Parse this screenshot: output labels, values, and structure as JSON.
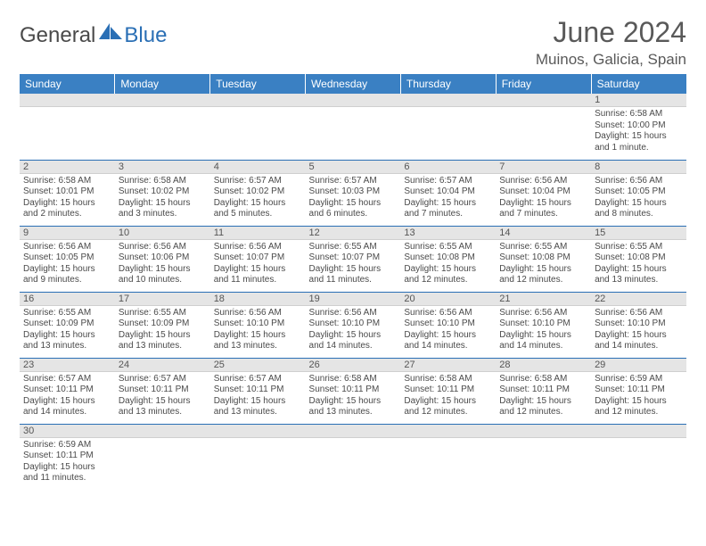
{
  "brand": {
    "general": "General",
    "blue": "Blue"
  },
  "title": "June 2024",
  "location": "Muinos, Galicia, Spain",
  "colors": {
    "header_bg": "#3a80c3",
    "daynum_bg": "#e5e5e5",
    "row_border": "#2a6fb5",
    "text": "#4a4a4a"
  },
  "weekdays": [
    "Sunday",
    "Monday",
    "Tuesday",
    "Wednesday",
    "Thursday",
    "Friday",
    "Saturday"
  ],
  "weeks": [
    [
      {
        "n": "",
        "sr": "",
        "ss": "",
        "dl": ""
      },
      {
        "n": "",
        "sr": "",
        "ss": "",
        "dl": ""
      },
      {
        "n": "",
        "sr": "",
        "ss": "",
        "dl": ""
      },
      {
        "n": "",
        "sr": "",
        "ss": "",
        "dl": ""
      },
      {
        "n": "",
        "sr": "",
        "ss": "",
        "dl": ""
      },
      {
        "n": "",
        "sr": "",
        "ss": "",
        "dl": ""
      },
      {
        "n": "1",
        "sr": "Sunrise: 6:58 AM",
        "ss": "Sunset: 10:00 PM",
        "dl": "Daylight: 15 hours and 1 minute."
      }
    ],
    [
      {
        "n": "2",
        "sr": "Sunrise: 6:58 AM",
        "ss": "Sunset: 10:01 PM",
        "dl": "Daylight: 15 hours and 2 minutes."
      },
      {
        "n": "3",
        "sr": "Sunrise: 6:58 AM",
        "ss": "Sunset: 10:02 PM",
        "dl": "Daylight: 15 hours and 3 minutes."
      },
      {
        "n": "4",
        "sr": "Sunrise: 6:57 AM",
        "ss": "Sunset: 10:02 PM",
        "dl": "Daylight: 15 hours and 5 minutes."
      },
      {
        "n": "5",
        "sr": "Sunrise: 6:57 AM",
        "ss": "Sunset: 10:03 PM",
        "dl": "Daylight: 15 hours and 6 minutes."
      },
      {
        "n": "6",
        "sr": "Sunrise: 6:57 AM",
        "ss": "Sunset: 10:04 PM",
        "dl": "Daylight: 15 hours and 7 minutes."
      },
      {
        "n": "7",
        "sr": "Sunrise: 6:56 AM",
        "ss": "Sunset: 10:04 PM",
        "dl": "Daylight: 15 hours and 7 minutes."
      },
      {
        "n": "8",
        "sr": "Sunrise: 6:56 AM",
        "ss": "Sunset: 10:05 PM",
        "dl": "Daylight: 15 hours and 8 minutes."
      }
    ],
    [
      {
        "n": "9",
        "sr": "Sunrise: 6:56 AM",
        "ss": "Sunset: 10:05 PM",
        "dl": "Daylight: 15 hours and 9 minutes."
      },
      {
        "n": "10",
        "sr": "Sunrise: 6:56 AM",
        "ss": "Sunset: 10:06 PM",
        "dl": "Daylight: 15 hours and 10 minutes."
      },
      {
        "n": "11",
        "sr": "Sunrise: 6:56 AM",
        "ss": "Sunset: 10:07 PM",
        "dl": "Daylight: 15 hours and 11 minutes."
      },
      {
        "n": "12",
        "sr": "Sunrise: 6:55 AM",
        "ss": "Sunset: 10:07 PM",
        "dl": "Daylight: 15 hours and 11 minutes."
      },
      {
        "n": "13",
        "sr": "Sunrise: 6:55 AM",
        "ss": "Sunset: 10:08 PM",
        "dl": "Daylight: 15 hours and 12 minutes."
      },
      {
        "n": "14",
        "sr": "Sunrise: 6:55 AM",
        "ss": "Sunset: 10:08 PM",
        "dl": "Daylight: 15 hours and 12 minutes."
      },
      {
        "n": "15",
        "sr": "Sunrise: 6:55 AM",
        "ss": "Sunset: 10:08 PM",
        "dl": "Daylight: 15 hours and 13 minutes."
      }
    ],
    [
      {
        "n": "16",
        "sr": "Sunrise: 6:55 AM",
        "ss": "Sunset: 10:09 PM",
        "dl": "Daylight: 15 hours and 13 minutes."
      },
      {
        "n": "17",
        "sr": "Sunrise: 6:55 AM",
        "ss": "Sunset: 10:09 PM",
        "dl": "Daylight: 15 hours and 13 minutes."
      },
      {
        "n": "18",
        "sr": "Sunrise: 6:56 AM",
        "ss": "Sunset: 10:10 PM",
        "dl": "Daylight: 15 hours and 13 minutes."
      },
      {
        "n": "19",
        "sr": "Sunrise: 6:56 AM",
        "ss": "Sunset: 10:10 PM",
        "dl": "Daylight: 15 hours and 14 minutes."
      },
      {
        "n": "20",
        "sr": "Sunrise: 6:56 AM",
        "ss": "Sunset: 10:10 PM",
        "dl": "Daylight: 15 hours and 14 minutes."
      },
      {
        "n": "21",
        "sr": "Sunrise: 6:56 AM",
        "ss": "Sunset: 10:10 PM",
        "dl": "Daylight: 15 hours and 14 minutes."
      },
      {
        "n": "22",
        "sr": "Sunrise: 6:56 AM",
        "ss": "Sunset: 10:10 PM",
        "dl": "Daylight: 15 hours and 14 minutes."
      }
    ],
    [
      {
        "n": "23",
        "sr": "Sunrise: 6:57 AM",
        "ss": "Sunset: 10:11 PM",
        "dl": "Daylight: 15 hours and 14 minutes."
      },
      {
        "n": "24",
        "sr": "Sunrise: 6:57 AM",
        "ss": "Sunset: 10:11 PM",
        "dl": "Daylight: 15 hours and 13 minutes."
      },
      {
        "n": "25",
        "sr": "Sunrise: 6:57 AM",
        "ss": "Sunset: 10:11 PM",
        "dl": "Daylight: 15 hours and 13 minutes."
      },
      {
        "n": "26",
        "sr": "Sunrise: 6:58 AM",
        "ss": "Sunset: 10:11 PM",
        "dl": "Daylight: 15 hours and 13 minutes."
      },
      {
        "n": "27",
        "sr": "Sunrise: 6:58 AM",
        "ss": "Sunset: 10:11 PM",
        "dl": "Daylight: 15 hours and 12 minutes."
      },
      {
        "n": "28",
        "sr": "Sunrise: 6:58 AM",
        "ss": "Sunset: 10:11 PM",
        "dl": "Daylight: 15 hours and 12 minutes."
      },
      {
        "n": "29",
        "sr": "Sunrise: 6:59 AM",
        "ss": "Sunset: 10:11 PM",
        "dl": "Daylight: 15 hours and 12 minutes."
      }
    ],
    [
      {
        "n": "30",
        "sr": "Sunrise: 6:59 AM",
        "ss": "Sunset: 10:11 PM",
        "dl": "Daylight: 15 hours and 11 minutes."
      },
      {
        "n": "",
        "sr": "",
        "ss": "",
        "dl": ""
      },
      {
        "n": "",
        "sr": "",
        "ss": "",
        "dl": ""
      },
      {
        "n": "",
        "sr": "",
        "ss": "",
        "dl": ""
      },
      {
        "n": "",
        "sr": "",
        "ss": "",
        "dl": ""
      },
      {
        "n": "",
        "sr": "",
        "ss": "",
        "dl": ""
      },
      {
        "n": "",
        "sr": "",
        "ss": "",
        "dl": ""
      }
    ]
  ]
}
